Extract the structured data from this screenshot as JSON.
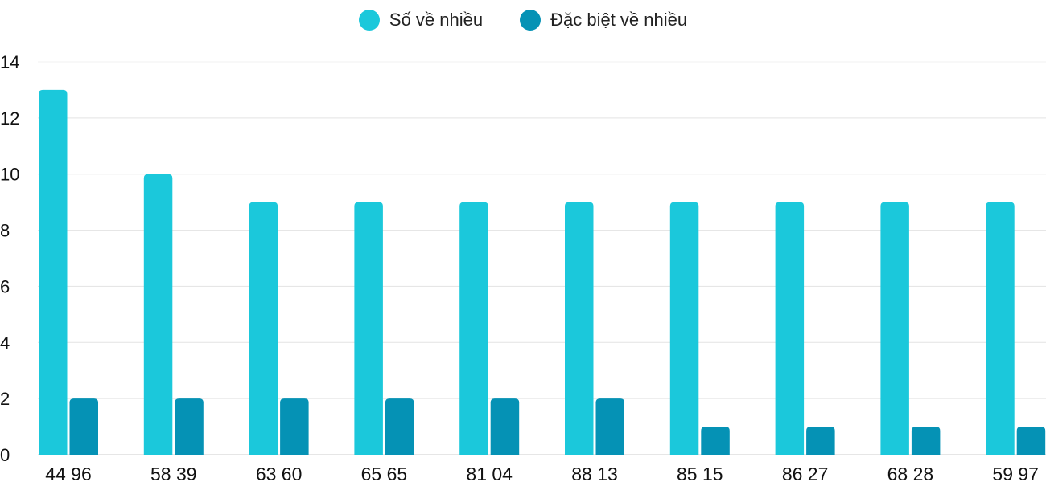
{
  "chart_data": {
    "type": "bar",
    "categories": [
      "44 96",
      "58 39",
      "63 60",
      "65 65",
      "81 04",
      "88 13",
      "85 15",
      "86 27",
      "68 28",
      "59 97"
    ],
    "series": [
      {
        "name": "Số về nhiều",
        "color": "#1bc8db",
        "values": [
          13,
          10,
          9,
          9,
          9,
          9,
          9,
          9,
          9,
          9
        ]
      },
      {
        "name": "Đặc biệt về nhiều",
        "color": "#0592b5",
        "values": [
          2,
          2,
          2,
          2,
          2,
          2,
          1,
          1,
          1,
          1
        ]
      }
    ],
    "ylim": [
      0,
      14
    ],
    "yticks": [
      0,
      2,
      4,
      6,
      8,
      10,
      12,
      14
    ],
    "grid": true,
    "legend": "top-center",
    "title": "",
    "xlabel": "",
    "ylabel": ""
  }
}
